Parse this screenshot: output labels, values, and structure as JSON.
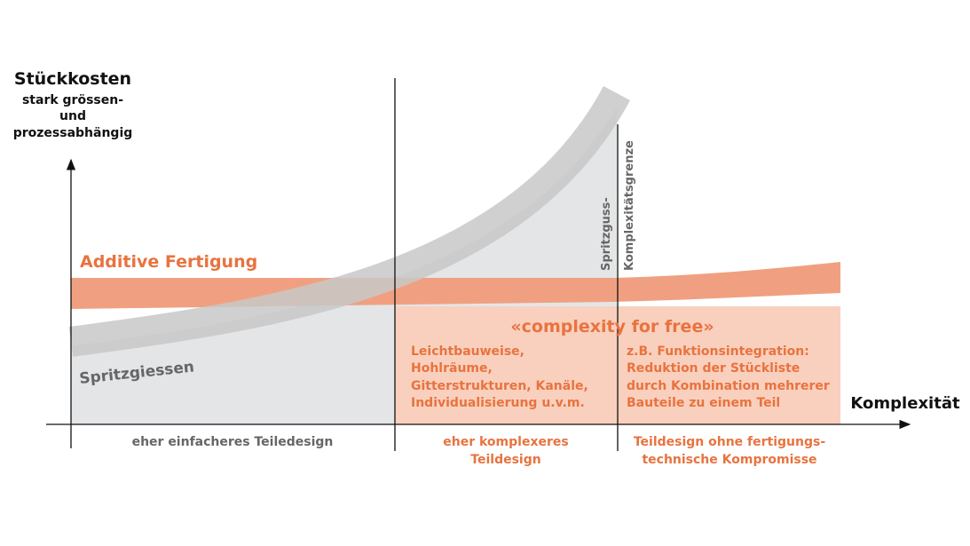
{
  "y_axis": {
    "title": "Stückkosten",
    "subtitle_lines": [
      "stark grössen-",
      "und",
      "prozessabhängig"
    ]
  },
  "x_axis": {
    "title": "Komplexität"
  },
  "labels": {
    "additive": "Additive Fertigung",
    "spritzgiessen": "Spritzgiessen",
    "limit_line1": "Spritzguss-",
    "limit_line2": "Komplexitätsgrenze",
    "complexity": "«complexity for free»"
  },
  "middle_list": [
    "Leichtbauweise,",
    "Hohlräume,",
    "Gitterstrukturen, Kanäle,",
    "Individualisierung u.v.m."
  ],
  "right_list": [
    "z.B. Funktionsintegration:",
    "Reduktion der Stückliste",
    "durch Kombination mehrerer",
    "Bauteile zu einem Teil"
  ],
  "sections": {
    "left": [
      "eher einfacheres Teiledesign"
    ],
    "middle": [
      "eher komplexeres",
      "Teildesign"
    ],
    "right": [
      "Teildesign ohne fertigungs-",
      "technische Kompromisse"
    ]
  },
  "colors": {
    "orange_text": "#e8733f",
    "orange_band": "#f0a080",
    "orange_light": "#f9d0be",
    "grey_band": "#cccccc",
    "grey_area": "#e4e5e7",
    "text_dark": "#111111",
    "text_grey": "#666666"
  }
}
